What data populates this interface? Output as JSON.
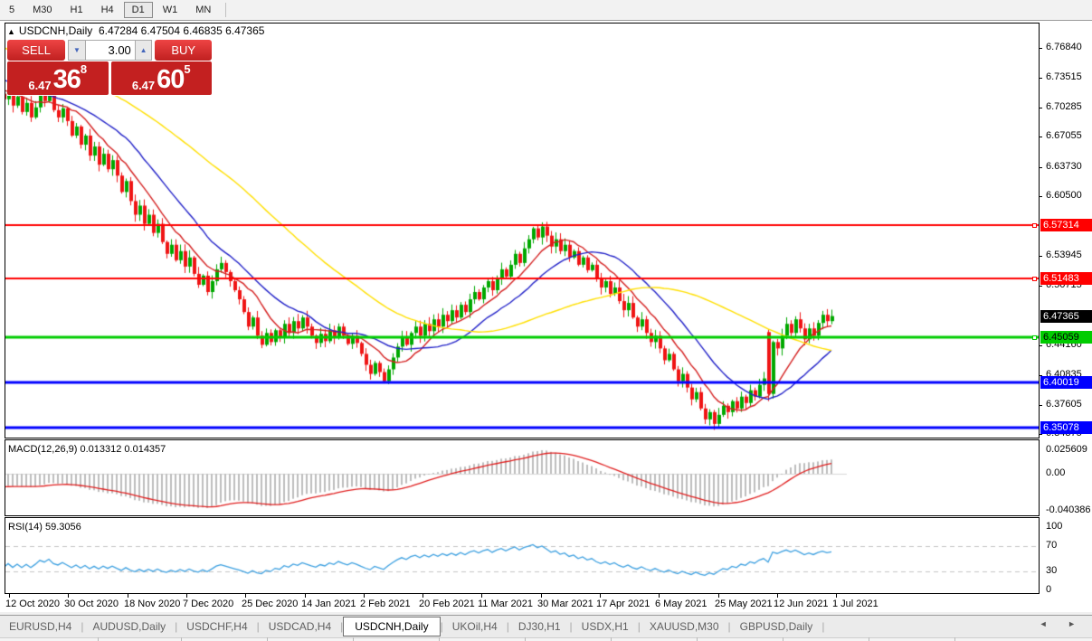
{
  "toolbar": {
    "timeframes": [
      {
        "label": "5",
        "active": false
      },
      {
        "label": "M30",
        "active": false
      },
      {
        "label": "H1",
        "active": false
      },
      {
        "label": "H4",
        "active": false
      },
      {
        "label": "D1",
        "active": true
      },
      {
        "label": "W1",
        "active": false
      },
      {
        "label": "MN",
        "active": false
      }
    ]
  },
  "chart": {
    "symbol": "USDCNH,Daily",
    "ohlc_line": "6.47284 6.47504 6.46835 6.47365"
  },
  "trade": {
    "sell_label": "SELL",
    "buy_label": "BUY",
    "volume": "3.00",
    "bid": {
      "small": "6.47",
      "big": "36",
      "sup": "8"
    },
    "ask": {
      "small": "6.47",
      "big": "60",
      "sup": "5"
    }
  },
  "chart_data": {
    "type": "candlestick",
    "title": "USDCNH Daily with MACD(12,26,9) and RSI(14)",
    "x_labels": [
      "12 Oct 2020",
      "30 Oct 2020",
      "18 Nov 2020",
      "7 Dec 2020",
      "25 Dec 2020",
      "14 Jan 2021",
      "2 Feb 2021",
      "20 Feb 2021",
      "11 Mar 2021",
      "30 Mar 2021",
      "17 Apr 2021",
      "6 May 2021",
      "25 May 2021",
      "12 Jun 2021",
      "1 Jul 2021"
    ],
    "candles_per_label": 13,
    "closes": [
      6.712,
      6.722,
      6.705,
      6.715,
      6.698,
      6.708,
      6.692,
      6.703,
      6.718,
      6.71,
      6.722,
      6.7,
      6.692,
      6.702,
      6.688,
      6.672,
      6.682,
      6.662,
      6.672,
      6.65,
      6.66,
      6.64,
      6.652,
      6.635,
      6.645,
      6.628,
      6.61,
      6.622,
      6.6,
      6.585,
      6.595,
      6.575,
      6.585,
      6.565,
      6.575,
      6.555,
      6.542,
      6.552,
      6.535,
      6.545,
      6.528,
      6.538,
      6.52,
      6.508,
      6.518,
      6.5,
      6.512,
      6.525,
      6.532,
      6.522,
      6.512,
      6.502,
      6.492,
      6.478,
      6.462,
      6.472,
      6.452,
      6.442,
      6.455,
      6.445,
      6.458,
      6.45,
      6.465,
      6.455,
      6.468,
      6.46,
      6.472,
      6.462,
      6.452,
      6.444,
      6.454,
      6.446,
      6.458,
      6.45,
      6.462,
      6.452,
      6.443,
      6.452,
      6.444,
      6.432,
      6.42,
      6.41,
      6.422,
      6.412,
      6.402,
      6.415,
      6.428,
      6.44,
      6.45,
      6.442,
      6.455,
      6.462,
      6.452,
      6.465,
      6.457,
      6.47,
      6.462,
      6.475,
      6.468,
      6.48,
      6.472,
      6.486,
      6.478,
      6.492,
      6.5,
      6.492,
      6.505,
      6.512,
      6.502,
      6.515,
      6.525,
      6.517,
      6.53,
      6.542,
      6.532,
      6.548,
      6.558,
      6.57,
      6.56,
      6.572,
      6.562,
      6.55,
      6.558,
      6.545,
      6.552,
      6.538,
      6.545,
      6.53,
      6.538,
      6.524,
      6.53,
      6.515,
      6.505,
      6.512,
      6.498,
      6.505,
      6.49,
      6.48,
      6.488,
      6.472,
      6.462,
      6.47,
      6.455,
      6.445,
      6.452,
      6.438,
      6.425,
      6.432,
      6.415,
      6.402,
      6.41,
      6.395,
      6.382,
      6.39,
      6.372,
      6.36,
      6.368,
      6.355,
      6.365,
      6.375,
      6.368,
      6.38,
      6.372,
      6.385,
      6.378,
      6.392,
      6.385,
      6.398,
      6.405,
      6.388,
      6.445,
      6.438,
      6.452,
      6.465,
      6.455,
      6.47,
      6.46,
      6.448,
      6.46,
      6.452,
      6.466,
      6.475,
      6.468,
      6.4736
    ],
    "open_gap_overrides": {
      "169": 0.051
    },
    "price_axis_ticks": [
      "6.76840",
      "6.73515",
      "6.70285",
      "6.67055",
      "6.63730",
      "6.60500",
      "6.53945",
      "6.50715",
      "6.44160",
      "6.40835",
      "6.37605",
      "6.34375"
    ],
    "current_price": {
      "value": 6.47365,
      "label": "6.47365",
      "bg": "#000000",
      "fg": "#ffffff"
    },
    "level_lines": [
      {
        "price": 6.57314,
        "label": "6.57314",
        "color": "#ff0000",
        "fg": "#ffffff",
        "width": 2,
        "handle": true
      },
      {
        "price": 6.51483,
        "label": "6.51483",
        "color": "#ff0000",
        "fg": "#ffffff",
        "width": 2,
        "handle": true
      },
      {
        "price": 6.45059,
        "label": "6.45059",
        "color": "#00cc00",
        "fg": "#000000",
        "width": 3,
        "handle": true
      },
      {
        "price": 6.40019,
        "label": "6.40019",
        "color": "#0000ff",
        "fg": "#ffffff",
        "width": 3,
        "handle": false
      },
      {
        "price": 6.35078,
        "label": "6.35078",
        "color": "#0000ff",
        "fg": "#ffffff",
        "width": 3,
        "handle": false
      }
    ],
    "moving_averages": [
      {
        "period": 10,
        "color": "#d42020"
      },
      {
        "period": 21,
        "color": "#2222c8"
      },
      {
        "period": 55,
        "color": "#ffdf00"
      }
    ],
    "macd": {
      "label": "MACD(12,26,9) 0.013312 0.014357",
      "fast": 12,
      "slow": 26,
      "signal": 9,
      "axis": [
        {
          "label": "0.025609",
          "value": 0.025609
        },
        {
          "label": "0.00",
          "value": 0.0
        },
        {
          "label": "-0.040386",
          "value": -0.040386
        }
      ]
    },
    "rsi": {
      "label": "RSI(14) 59.3056",
      "period": 14,
      "axis": [
        {
          "label": "100",
          "value": 100,
          "dashed": false
        },
        {
          "label": "70",
          "value": 70,
          "dashed": true
        },
        {
          "label": "30",
          "value": 30,
          "dashed": true
        },
        {
          "label": "0",
          "value": 0,
          "dashed": false
        }
      ]
    },
    "colors": {
      "candle_up": "#00a800",
      "candle_down": "#ef1515",
      "macd_hist": "#bdbdbd",
      "macd_signal": "#e02020",
      "rsi_line": "#3da0e0"
    }
  },
  "tabs": {
    "items": [
      {
        "label": "EURUSD,H4",
        "active": false
      },
      {
        "label": "AUDUSD,Daily",
        "active": false
      },
      {
        "label": "USDCHF,H4",
        "active": false
      },
      {
        "label": "USDCAD,H4",
        "active": false
      },
      {
        "label": "USDCNH,Daily",
        "active": true
      },
      {
        "label": "UKOil,H4",
        "active": false
      },
      {
        "label": "DJ30,H1",
        "active": false
      },
      {
        "label": "USDX,H1",
        "active": false
      },
      {
        "label": "XAUUSD,M30",
        "active": false
      },
      {
        "label": "GBPUSD,Daily",
        "active": false
      }
    ],
    "arrows": "◄ ►"
  }
}
